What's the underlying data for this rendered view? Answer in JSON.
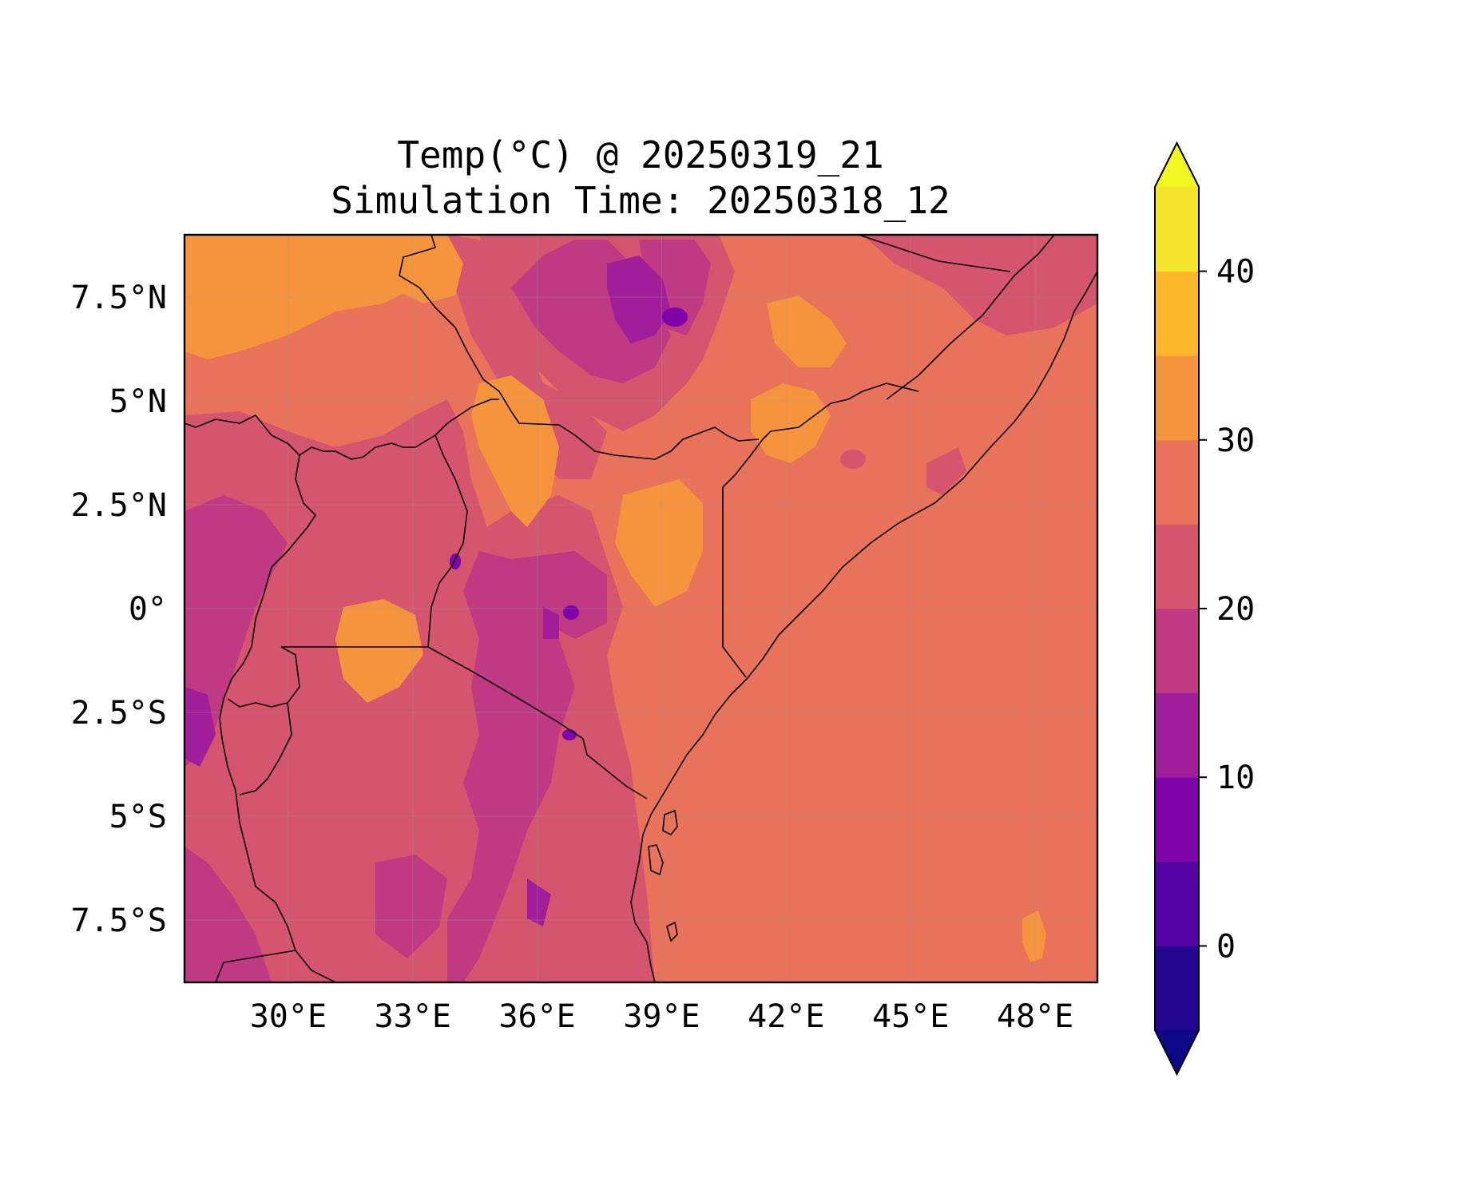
{
  "title": {
    "line1": "Temp(°C) @ 20250319_21",
    "line2": "Simulation Time: 20250318_12"
  },
  "map": {
    "lon_range": [
      27.5,
      49.5
    ],
    "lat_range": [
      -9.0,
      9.0
    ],
    "x_ticks": [
      {
        "value": 30,
        "label": "30°E"
      },
      {
        "value": 33,
        "label": "33°E"
      },
      {
        "value": 36,
        "label": "36°E"
      },
      {
        "value": 39,
        "label": "39°E"
      },
      {
        "value": 42,
        "label": "42°E"
      },
      {
        "value": 45,
        "label": "45°E"
      },
      {
        "value": 48,
        "label": "48°E"
      }
    ],
    "y_ticks": [
      {
        "value": 7.5,
        "label": "7.5°N"
      },
      {
        "value": 5,
        "label": "5°N"
      },
      {
        "value": 2.5,
        "label": "2.5°N"
      },
      {
        "value": 0,
        "label": "0°"
      },
      {
        "value": -2.5,
        "label": "2.5°S"
      },
      {
        "value": -5,
        "label": "5°S"
      },
      {
        "value": -7.5,
        "label": "7.5°S"
      }
    ],
    "grid": true
  },
  "colorbar": {
    "min": -5,
    "max": 45,
    "extend": "both",
    "levels": [
      {
        "from": -5,
        "to": 0,
        "color": "#220690"
      },
      {
        "from": 0,
        "to": 5,
        "color": "#5402a3"
      },
      {
        "from": 5,
        "to": 10,
        "color": "#7e03a8"
      },
      {
        "from": 10,
        "to": 15,
        "color": "#a21d9a"
      },
      {
        "from": 15,
        "to": 20,
        "color": "#c03a83"
      },
      {
        "from": 20,
        "to": 25,
        "color": "#d5546e"
      },
      {
        "from": 25,
        "to": 30,
        "color": "#e8725a"
      },
      {
        "from": 30,
        "to": 35,
        "color": "#f6943e"
      },
      {
        "from": 35,
        "to": 40,
        "color": "#fdb72a"
      },
      {
        "from": 40,
        "to": 45,
        "color": "#f3e62c"
      }
    ],
    "under_color": "#0d0887",
    "over_color": "#f0f921",
    "ticks": [
      {
        "value": 0,
        "label": "0"
      },
      {
        "value": 10,
        "label": "10"
      },
      {
        "value": 20,
        "label": "20"
      },
      {
        "value": 30,
        "label": "30"
      },
      {
        "value": 40,
        "label": "40"
      }
    ]
  }
}
